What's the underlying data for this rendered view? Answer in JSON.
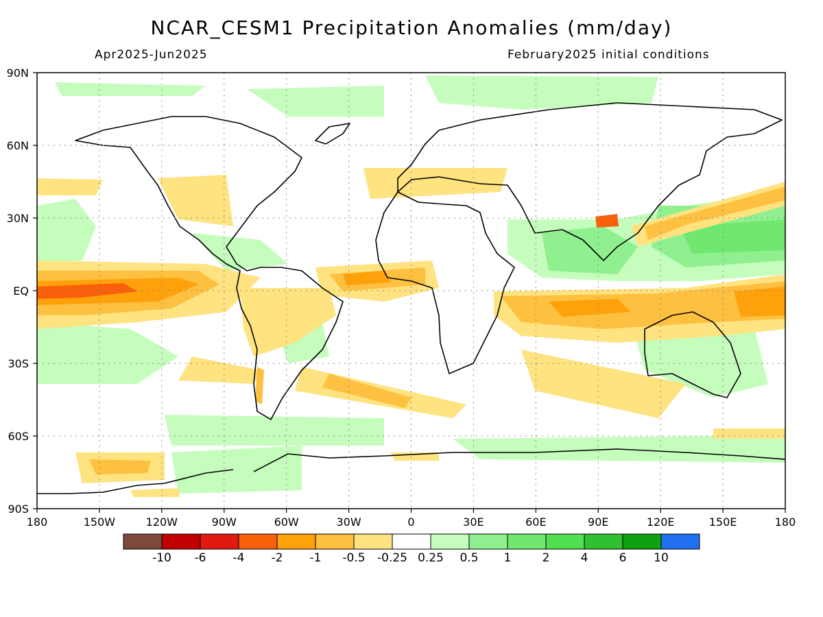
{
  "title": "NCAR_CESM1 Precipitation Anomalies (mm/day)",
  "period": "Apr2025-Jun2025",
  "initial_conditions": "February2025 initial conditions",
  "lat_labels": [
    "90N",
    "60N",
    "30N",
    "EQ",
    "30S",
    "60S",
    "90S"
  ],
  "lon_labels": [
    "180",
    "150W",
    "120W",
    "90W",
    "60W",
    "30W",
    "0",
    "30E",
    "60E",
    "90E",
    "120E",
    "150E",
    "180"
  ],
  "colorbar": {
    "colors": [
      "#7b4a3a",
      "#c00000",
      "#e01a10",
      "#fa5f0a",
      "#fea10a",
      "#fec040",
      "#fee380",
      "#ffffff",
      "#c4fdbc",
      "#90f090",
      "#70e870",
      "#50e050",
      "#30c030",
      "#10a010",
      "#2070f0"
    ],
    "labels": [
      "-10",
      "-6",
      "-4",
      "-2",
      "-1",
      "-0.5",
      "-0.25",
      "0.25",
      "0.5",
      "1",
      "2",
      "4",
      "6",
      "10"
    ]
  }
}
